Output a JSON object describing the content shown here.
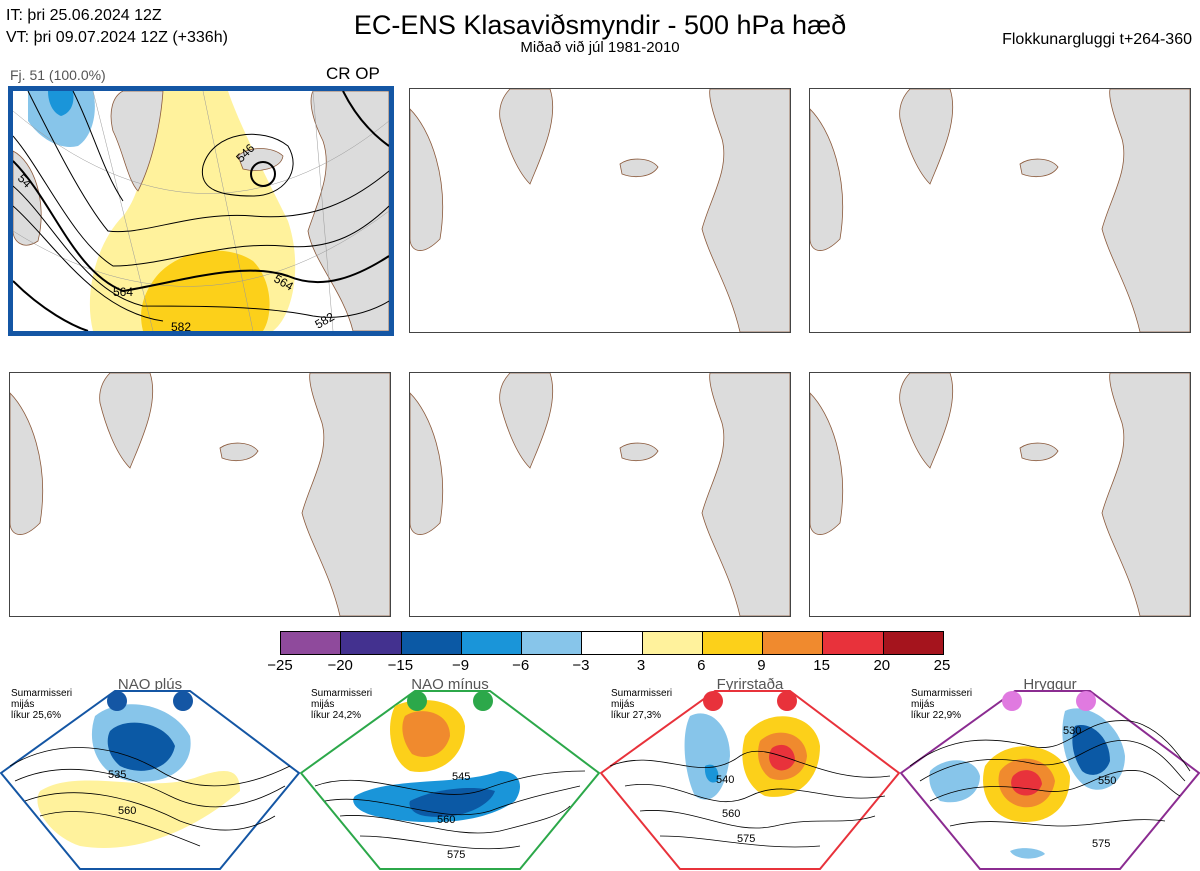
{
  "header": {
    "it_line": "IT: þri 25.06.2024 12Z",
    "vt_line": "VT: þri 09.07.2024 12Z  (+336h)",
    "title": "EC-ENS Klasaviðsmyndir - 500 hPa hæð",
    "subtitle": "Miðað við júl 1981-2010",
    "window": "Flokkunargluggi t+264-360"
  },
  "panel1": {
    "label": "Fj. 51 (100.0%)",
    "regime": "CR OP",
    "contours": [
      "546",
      "564",
      "564",
      "54",
      "582",
      "582"
    ]
  },
  "colorbar": {
    "ticks": [
      "−25",
      "−20",
      "−15",
      "−9",
      "−6",
      "−3",
      "3",
      "6",
      "9",
      "15",
      "20",
      "25"
    ],
    "colors": [
      "#8f4a9c",
      "#43318f",
      "#0b59a5",
      "#1a95d9",
      "#87c5ea",
      "#ffffff",
      "#fff29c",
      "#fcd01a",
      "#f08a2e",
      "#e8323b",
      "#a5141d"
    ]
  },
  "regimes": [
    {
      "name": "NAO plús",
      "note1": "Sumarmisseri",
      "note2": "mijás",
      "note3": "líkur 25,6%",
      "color": "#1456a4",
      "c1": "535",
      "c2": "560"
    },
    {
      "name": "NAO mínus",
      "note1": "Sumarmisseri",
      "note2": "mijás",
      "note3": "líkur 24,2%",
      "color": "#2ca84a",
      "c1": "545",
      "c2": "560",
      "c3": "575"
    },
    {
      "name": "Fyrirstaða",
      "note1": "Sumarmisseri",
      "note2": "mijás",
      "note3": "líkur 27,3%",
      "color": "#e8323b",
      "c1": "540",
      "c2": "560",
      "c3": "575"
    },
    {
      "name": "Hryggur",
      "note1": "Sumarmisseri",
      "note2": "mijás",
      "note3": "líkur 22,9%",
      "color": "#8b2c91",
      "c1": "530",
      "c2": "550",
      "c3": "575"
    }
  ],
  "chart_data": {
    "type": "heatmap",
    "title": "EC-ENS Klasaviðsmyndir - 500 hPa hæð",
    "colorbar_ticks": [
      -25,
      -20,
      -15,
      -9,
      -6,
      -3,
      3,
      6,
      9,
      15,
      20,
      25
    ],
    "panels": [
      {
        "label": "Fj. 51 (100.0%)",
        "regime": "CR OP",
        "contour_labels": [
          546,
          564,
          564,
          582,
          582
        ]
      }
    ],
    "regime_probabilities": [
      {
        "name": "NAO plús",
        "probability": 25.6
      },
      {
        "name": "NAO mínus",
        "probability": 24.2
      },
      {
        "name": "Fyrirstaða",
        "probability": 27.3
      },
      {
        "name": "Hryggur",
        "probability": 22.9
      }
    ]
  }
}
